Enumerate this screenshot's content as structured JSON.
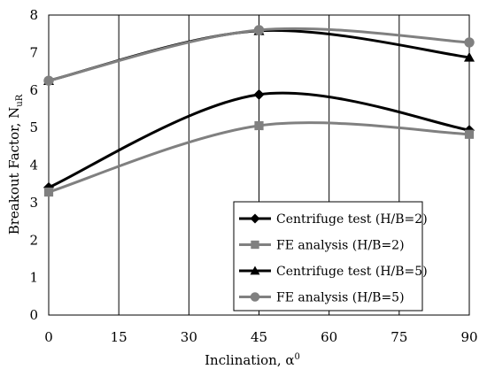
{
  "chart_data": {
    "type": "line",
    "xlabel": "Inclination, α",
    "xlabel_superscript": "0",
    "ylabel": "Breakout Factor, N",
    "ylabel_subscript": "uR",
    "xlim": [
      0,
      90
    ],
    "ylim": [
      0,
      8
    ],
    "xticks": [
      0,
      15,
      30,
      45,
      60,
      75,
      90
    ],
    "yticks": [
      0,
      1,
      2,
      3,
      4,
      5,
      6,
      7,
      8
    ],
    "grid": "vertical",
    "smooth": true,
    "legend_position": "bottom-right",
    "series": [
      {
        "name": "Centrifuge test (H/B=2)",
        "color": "#000000",
        "marker": "diamond",
        "x": [
          0,
          45,
          90
        ],
        "y": [
          3.4,
          5.88,
          4.93
        ]
      },
      {
        "name": "FE analysis (H/B=2)",
        "color": "#808080",
        "marker": "square",
        "x": [
          0,
          45,
          90
        ],
        "y": [
          3.28,
          5.05,
          4.82
        ]
      },
      {
        "name": "Centrifuge test (H/B=5)",
        "color": "#000000",
        "marker": "triangle",
        "x": [
          0,
          45,
          90
        ],
        "y": [
          6.25,
          7.58,
          6.87
        ]
      },
      {
        "name": "FE analysis (H/B=5)",
        "color": "#808080",
        "marker": "circle",
        "x": [
          0,
          45,
          90
        ],
        "y": [
          6.25,
          7.6,
          7.27
        ]
      }
    ]
  }
}
